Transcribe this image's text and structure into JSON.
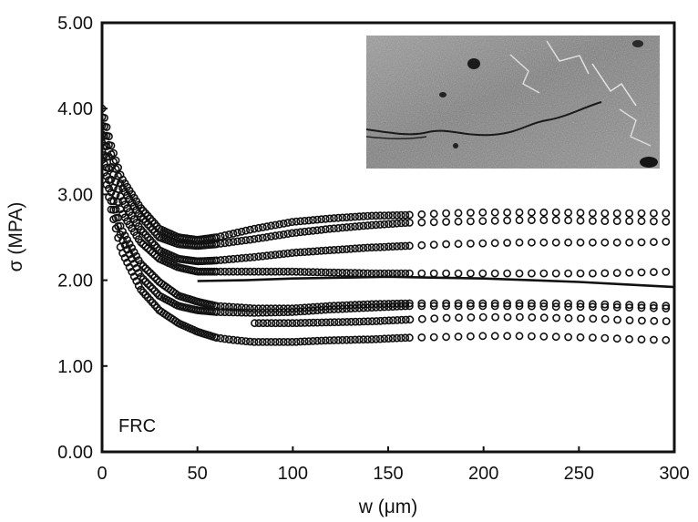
{
  "chart_data": {
    "type": "scatter",
    "xlabel": "w (μm)",
    "ylabel": "σ (MPA)",
    "annotation": "FRC",
    "xlim": [
      0,
      300
    ],
    "ylim": [
      0,
      5
    ],
    "x_ticks": [
      "0",
      "50",
      "100",
      "150",
      "200",
      "250",
      "300"
    ],
    "y_ticks": [
      "0.00",
      "1.00",
      "2.00",
      "3.00",
      "4.00",
      "5.00"
    ],
    "inset": "micrograph-photo",
    "marker": "open-circle",
    "color": "#111111",
    "series": [
      {
        "x": [
          0,
          5,
          10,
          20,
          30,
          40,
          50,
          60,
          80,
          100,
          120,
          140,
          160,
          180,
          200,
          220,
          240,
          260,
          280,
          300
        ],
        "y": [
          4.0,
          3.55,
          3.2,
          2.85,
          2.6,
          2.5,
          2.47,
          2.5,
          2.6,
          2.68,
          2.72,
          2.75,
          2.76,
          2.78,
          2.79,
          2.79,
          2.79,
          2.78,
          2.78,
          2.78
        ]
      },
      {
        "x": [
          0,
          5,
          10,
          20,
          30,
          40,
          50,
          60,
          80,
          100,
          120,
          140,
          160,
          180,
          200,
          220,
          240,
          260,
          280,
          300
        ],
        "y": [
          3.9,
          3.45,
          3.1,
          2.75,
          2.5,
          2.42,
          2.4,
          2.42,
          2.48,
          2.55,
          2.6,
          2.64,
          2.67,
          2.68,
          2.69,
          2.7,
          2.7,
          2.69,
          2.69,
          2.68
        ]
      },
      {
        "x": [
          0,
          5,
          10,
          20,
          30,
          40,
          50,
          60,
          80,
          100,
          120,
          140,
          160,
          180,
          200,
          220,
          240,
          260,
          280,
          300
        ],
        "y": [
          3.8,
          3.3,
          2.95,
          2.6,
          2.35,
          2.25,
          2.22,
          2.23,
          2.27,
          2.32,
          2.35,
          2.38,
          2.4,
          2.42,
          2.43,
          2.44,
          2.44,
          2.44,
          2.44,
          2.45
        ]
      },
      {
        "x": [
          0,
          5,
          10,
          20,
          30,
          40,
          50,
          60,
          80,
          100,
          120,
          140,
          160,
          180,
          200,
          220,
          240,
          260,
          280,
          300
        ],
        "y": [
          3.7,
          3.15,
          2.8,
          2.45,
          2.25,
          2.15,
          2.1,
          2.1,
          2.1,
          2.1,
          2.09,
          2.08,
          2.08,
          2.08,
          2.08,
          2.08,
          2.08,
          2.08,
          2.09,
          2.1
        ]
      },
      {
        "x": [
          0,
          5,
          10,
          20,
          30,
          40,
          50,
          60,
          80,
          100,
          120,
          140,
          160,
          180,
          200,
          220,
          240,
          260,
          280,
          300
        ],
        "y": [
          3.6,
          3.0,
          2.6,
          2.2,
          1.98,
          1.82,
          1.75,
          1.7,
          1.67,
          1.67,
          1.7,
          1.72,
          1.73,
          1.73,
          1.73,
          1.73,
          1.73,
          1.72,
          1.71,
          1.7
        ]
      },
      {
        "x": [
          0,
          5,
          10,
          20,
          30,
          40,
          50,
          60,
          80,
          100,
          120,
          140,
          160,
          180,
          200,
          220,
          240,
          260,
          280,
          300
        ],
        "y": [
          3.5,
          2.9,
          2.5,
          2.05,
          1.82,
          1.7,
          1.65,
          1.63,
          1.62,
          1.63,
          1.66,
          1.68,
          1.7,
          1.7,
          1.7,
          1.7,
          1.69,
          1.69,
          1.68,
          1.67
        ]
      },
      {
        "x": [
          80,
          100,
          120,
          140,
          160,
          180,
          200,
          220,
          240,
          260,
          280,
          300
        ],
        "y": [
          1.5,
          1.5,
          1.51,
          1.52,
          1.54,
          1.56,
          1.57,
          1.57,
          1.56,
          1.55,
          1.53,
          1.52
        ]
      },
      {
        "x": [
          0,
          5,
          10,
          20,
          30,
          40,
          50,
          60,
          70,
          80,
          100,
          120,
          140,
          160,
          180,
          200,
          220,
          240,
          260,
          280,
          300
        ],
        "y": [
          3.4,
          2.8,
          2.35,
          1.9,
          1.65,
          1.5,
          1.4,
          1.33,
          1.3,
          1.28,
          1.28,
          1.3,
          1.31,
          1.33,
          1.34,
          1.35,
          1.35,
          1.34,
          1.33,
          1.31,
          1.3
        ]
      }
    ],
    "solid_curve": {
      "x": [
        50,
        75,
        100,
        125,
        150,
        175,
        200,
        225,
        250,
        275,
        300
      ],
      "y": [
        1.99,
        2.0,
        2.02,
        2.03,
        2.04,
        2.03,
        2.02,
        2.0,
        1.98,
        1.95,
        1.92
      ]
    }
  }
}
